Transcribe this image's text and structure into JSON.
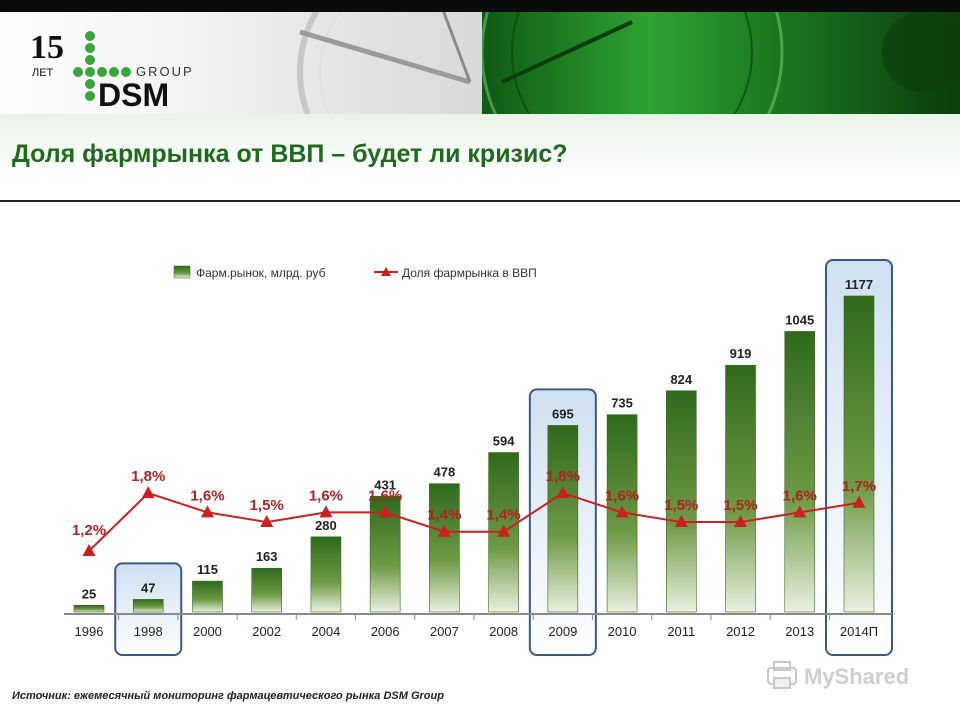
{
  "brand": {
    "logo_number": "15",
    "logo_years": "ЛЕТ",
    "logo_group": "GROUP",
    "logo_name": "DSM"
  },
  "title": "Доля фармрынка от ВВП – будет ли кризис?",
  "source": "Источник: ежемесячный мониторинг фармацевтического рынка DSM Group",
  "watermark": "MyShared",
  "colors": {
    "bar": "#4a7d2a",
    "line": "#cc1f1f",
    "title": "#1e6b1e",
    "highlight_border": "#3a5a86"
  },
  "chart_data": {
    "type": "bar",
    "categories": [
      "1996",
      "1998",
      "2000",
      "2002",
      "2004",
      "2006",
      "2007",
      "2008",
      "2009",
      "2010",
      "2011",
      "2012",
      "2013",
      "2014П"
    ],
    "series": [
      {
        "name": "Фарм.рынок, млрд. руб",
        "type": "bar",
        "values": [
          25,
          47,
          115,
          163,
          280,
          431,
          478,
          594,
          695,
          735,
          824,
          919,
          1045,
          1177
        ]
      },
      {
        "name": "Доля фармрынка в ВВП",
        "type": "line",
        "values": [
          1.2,
          1.8,
          1.6,
          1.5,
          1.6,
          1.6,
          1.4,
          1.4,
          1.8,
          1.6,
          1.5,
          1.5,
          1.6,
          1.7
        ],
        "labels": [
          "1,2%",
          "1,8%",
          "1,6%",
          "1,5%",
          "1,6%",
          "1,6%",
          "1,4%",
          "1,4%",
          "1,8%",
          "1,6%",
          "1,5%",
          "1,5%",
          "1,6%",
          "1,7%"
        ]
      }
    ],
    "highlighted_categories": [
      "1998",
      "2009",
      "2014П"
    ],
    "legend_position": "top-center",
    "grid": false
  }
}
